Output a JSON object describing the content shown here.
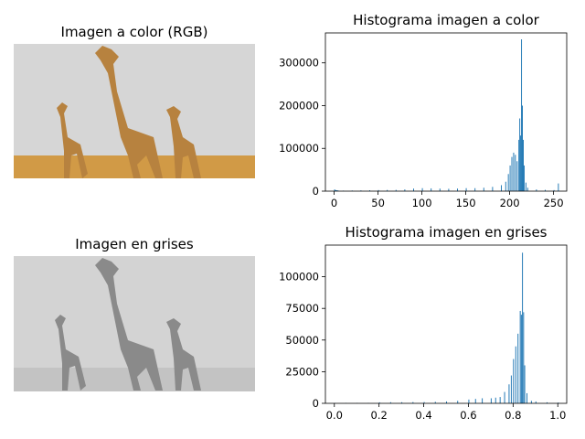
{
  "panels": {
    "color_image": {
      "title": "Imagen a color (RGB)"
    },
    "gray_image": {
      "title": "Imagen en grises"
    }
  },
  "colors": {
    "bar": "#1f77b4",
    "sky_color": "#d6d6d6",
    "grass_color": "#d19a46",
    "giraffe_color": "#b7823f",
    "sky_gray": "#d3d3d3",
    "grass_gray": "#c3c3c3",
    "giraffe_gray": "#8a8a8a"
  },
  "chart_data": [
    {
      "type": "bar",
      "title": "Histograma imagen a color",
      "xlabel": "",
      "ylabel": "",
      "xlim": [
        -10,
        265
      ],
      "ylim": [
        0,
        370000
      ],
      "x_ticks": [
        0,
        50,
        100,
        150,
        200,
        250
      ],
      "y_ticks": [
        0,
        100000,
        200000,
        300000
      ],
      "x_tick_labels": [
        "0",
        "50",
        "100",
        "150",
        "200",
        "250"
      ],
      "y_tick_labels": [
        "0",
        "100000",
        "200000",
        "300000"
      ],
      "bin_width": 1,
      "bins": [
        [
          0,
          4000
        ],
        [
          1,
          2500
        ],
        [
          2,
          2000
        ],
        [
          3,
          1800
        ],
        [
          4,
          1500
        ],
        [
          10,
          1200
        ],
        [
          20,
          1500
        ],
        [
          30,
          1800
        ],
        [
          40,
          2000
        ],
        [
          50,
          2500
        ],
        [
          60,
          2800
        ],
        [
          70,
          3000
        ],
        [
          80,
          4000
        ],
        [
          90,
          6000
        ],
        [
          100,
          7000
        ],
        [
          110,
          6500
        ],
        [
          120,
          6000
        ],
        [
          130,
          5500
        ],
        [
          140,
          6000
        ],
        [
          150,
          7000
        ],
        [
          160,
          7000
        ],
        [
          170,
          8000
        ],
        [
          180,
          10000
        ],
        [
          190,
          14000
        ],
        [
          195,
          22000
        ],
        [
          198,
          40000
        ],
        [
          200,
          60000
        ],
        [
          202,
          80000
        ],
        [
          204,
          90000
        ],
        [
          206,
          85000
        ],
        [
          208,
          70000
        ],
        [
          210,
          120000
        ],
        [
          211,
          170000
        ],
        [
          212,
          130000
        ],
        [
          213,
          355000
        ],
        [
          214,
          200000
        ],
        [
          215,
          120000
        ],
        [
          216,
          60000
        ],
        [
          218,
          20000
        ],
        [
          220,
          8000
        ],
        [
          230,
          4000
        ],
        [
          240,
          3000
        ],
        [
          250,
          2500
        ],
        [
          255,
          18000
        ]
      ]
    },
    {
      "type": "bar",
      "title": "Histograma imagen en grises",
      "xlabel": "",
      "ylabel": "",
      "xlim": [
        -0.04,
        1.04
      ],
      "ylim": [
        0,
        125000
      ],
      "x_ticks": [
        0.0,
        0.2,
        0.4,
        0.6,
        0.8,
        1.0
      ],
      "y_ticks": [
        0,
        25000,
        50000,
        75000,
        100000
      ],
      "x_tick_labels": [
        "0.0",
        "0.2",
        "0.4",
        "0.6",
        "0.8",
        "1.0"
      ],
      "y_tick_labels": [
        "0",
        "25000",
        "50000",
        "75000",
        "100000"
      ],
      "bin_width": 0.004,
      "bins": [
        [
          0.0,
          300
        ],
        [
          0.05,
          300
        ],
        [
          0.1,
          300
        ],
        [
          0.15,
          300
        ],
        [
          0.2,
          800
        ],
        [
          0.25,
          900
        ],
        [
          0.3,
          900
        ],
        [
          0.35,
          1000
        ],
        [
          0.4,
          1000
        ],
        [
          0.45,
          1200
        ],
        [
          0.5,
          1500
        ],
        [
          0.55,
          2000
        ],
        [
          0.6,
          3000
        ],
        [
          0.63,
          3500
        ],
        [
          0.66,
          4000
        ],
        [
          0.7,
          4000
        ],
        [
          0.72,
          4500
        ],
        [
          0.74,
          5000
        ],
        [
          0.76,
          9000
        ],
        [
          0.78,
          15000
        ],
        [
          0.79,
          22000
        ],
        [
          0.8,
          35000
        ],
        [
          0.81,
          45000
        ],
        [
          0.82,
          55000
        ],
        [
          0.83,
          73000
        ],
        [
          0.835,
          70000
        ],
        [
          0.84,
          119000
        ],
        [
          0.845,
          72000
        ],
        [
          0.85,
          30000
        ],
        [
          0.86,
          8000
        ],
        [
          0.88,
          2000
        ],
        [
          0.9,
          1500
        ],
        [
          0.95,
          800
        ],
        [
          1.0,
          600
        ]
      ]
    }
  ]
}
